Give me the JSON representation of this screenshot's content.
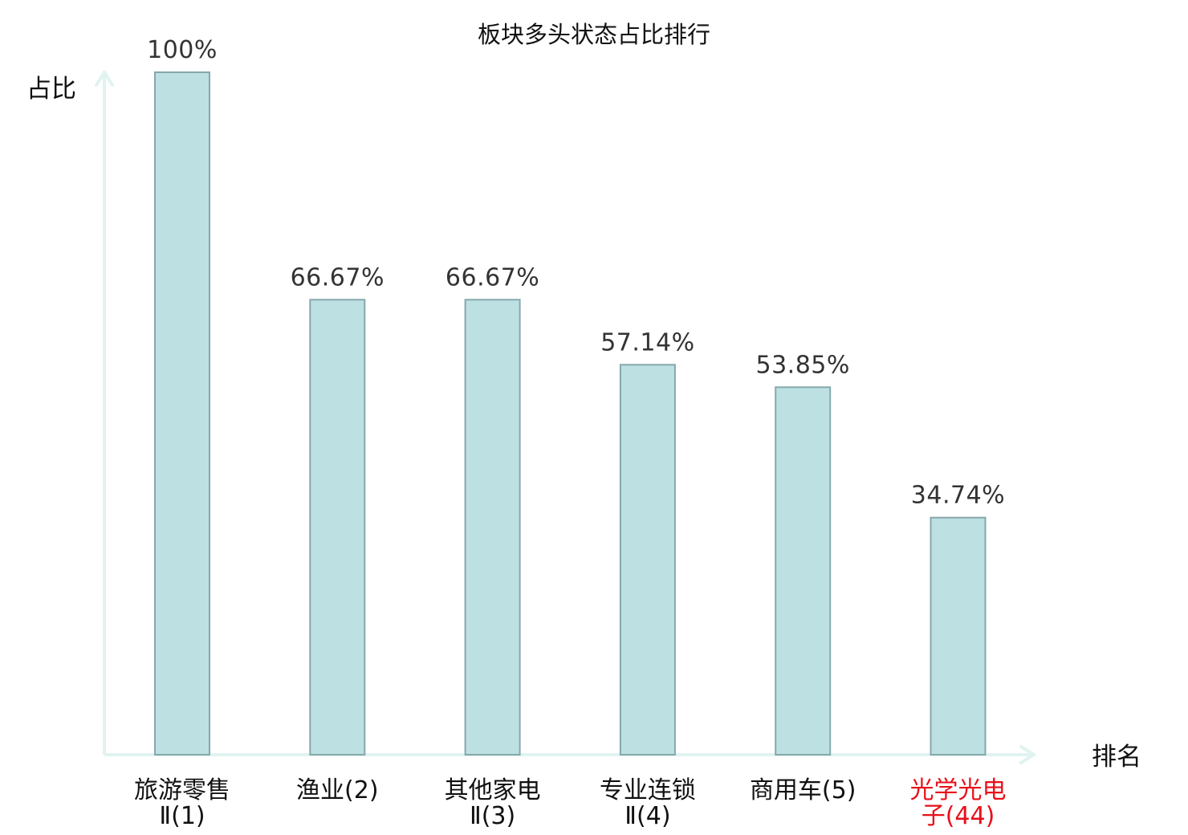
{
  "chart_data": {
    "type": "bar",
    "title": "板块多头状态占比排行",
    "ylabel": "占比",
    "xlabel": "排名",
    "ylim": [
      0,
      100
    ],
    "grid": false,
    "categories": [
      [
        "旅游零售",
        "Ⅱ(1)"
      ],
      [
        "渔业(2)"
      ],
      [
        "其他家电",
        "Ⅱ(3)"
      ],
      [
        "专业连锁",
        "Ⅱ(4)"
      ],
      [
        "商用车(5)"
      ],
      [
        "光学光电",
        "子(44)"
      ]
    ],
    "values": [
      100,
      66.67,
      66.67,
      57.14,
      53.85,
      34.74
    ],
    "value_labels": [
      "100%",
      "66.67%",
      "66.67%",
      "57.14%",
      "53.85%",
      "34.74%"
    ],
    "highlight_index": 5
  },
  "colors": {
    "bar_fill": "#bde0e3",
    "bar_stroke": "#86a8ac",
    "axis": "#e0f3f0",
    "text": "#111111",
    "value_text": "#333333",
    "highlight_text": "#e8101a"
  }
}
